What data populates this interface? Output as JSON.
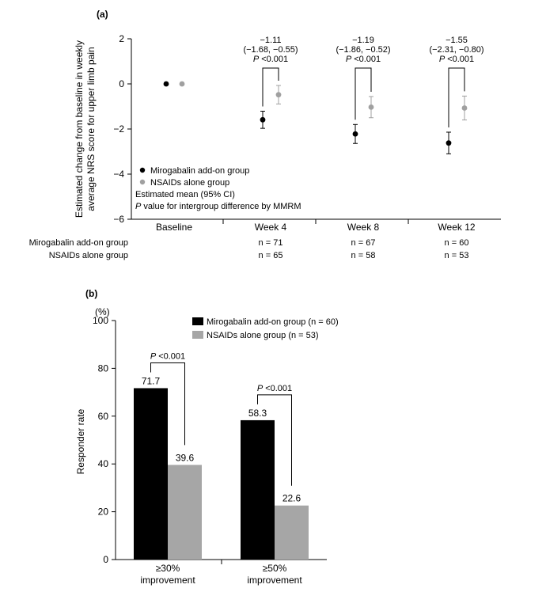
{
  "chart_data": [
    {
      "panel_label": "(a)",
      "type": "scatter",
      "ylabel_lines": [
        "Estimated change from baseline in weekly",
        "average NRS score for upper limb pain"
      ],
      "ylim": [
        -6,
        2
      ],
      "yticks": [
        2,
        0,
        -2,
        -4,
        -6
      ],
      "yticklabels": [
        "2",
        "0",
        "−2",
        "−4",
        "−6"
      ],
      "categories": [
        "Baseline",
        "Week 4",
        "Week 8",
        "Week 12"
      ],
      "series": [
        {
          "name": "Mirogabalin add-on group",
          "color": "#000000",
          "values": [
            0,
            -1.59,
            -2.22,
            -2.62
          ],
          "ci_low": [
            null,
            -1.97,
            -2.64,
            -3.1
          ],
          "ci_high": [
            null,
            -1.21,
            -1.8,
            -2.14
          ],
          "n": [
            "",
            "n = 71",
            "n = 67",
            "n = 60"
          ]
        },
        {
          "name": "NSAIDs alone group",
          "color": "#a0a0a0",
          "values": [
            0,
            -0.48,
            -1.03,
            -1.07
          ],
          "ci_low": [
            null,
            -0.89,
            -1.5,
            -1.6
          ],
          "ci_high": [
            null,
            -0.07,
            -0.56,
            -0.54
          ],
          "n": [
            "",
            "n = 65",
            "n = 58",
            "n = 53"
          ]
        }
      ],
      "differences": [
        {
          "category": "Week 4",
          "estimate": "−1.11",
          "ci": "(−1.68, −0.55)",
          "p_italic": "P",
          "p_value": "<0.001"
        },
        {
          "category": "Week 8",
          "estimate": "−1.19",
          "ci": "(−1.86, −0.52)",
          "p_italic": "P",
          "p_value": "<0.001"
        },
        {
          "category": "Week 12",
          "estimate": "−1.55",
          "ci": "(−2.31, −0.80)",
          "p_italic": "P",
          "p_value": "<0.001"
        }
      ],
      "notes": [
        "Estimated mean (95% CI)"
      ],
      "p_note_italic": "P",
      "p_note_rest": " value for intergroup difference by MMRM"
    },
    {
      "panel_label": "(b)",
      "type": "bar",
      "ylabel": "Responder rate",
      "yunit": "(%)",
      "ylim": [
        0,
        100
      ],
      "yticks": [
        0,
        20,
        40,
        60,
        80,
        100
      ],
      "categories": [
        [
          "≥30%",
          "improvement"
        ],
        [
          "≥50%",
          "improvement"
        ]
      ],
      "series": [
        {
          "name": "Mirogabalin add-on group (n = 60)",
          "color": "#000000",
          "values": [
            71.7,
            58.3
          ],
          "labels": [
            "71.7",
            "58.3"
          ]
        },
        {
          "name": "NSAIDs alone group (n = 53)",
          "color": "#a6a6a6",
          "values": [
            39.6,
            22.6
          ],
          "labels": [
            "39.6",
            "22.6"
          ]
        }
      ],
      "comparisons": [
        {
          "p_italic": "P",
          "p_value": "<0.001"
        },
        {
          "p_italic": "P",
          "p_value": "<0.001"
        }
      ]
    }
  ]
}
